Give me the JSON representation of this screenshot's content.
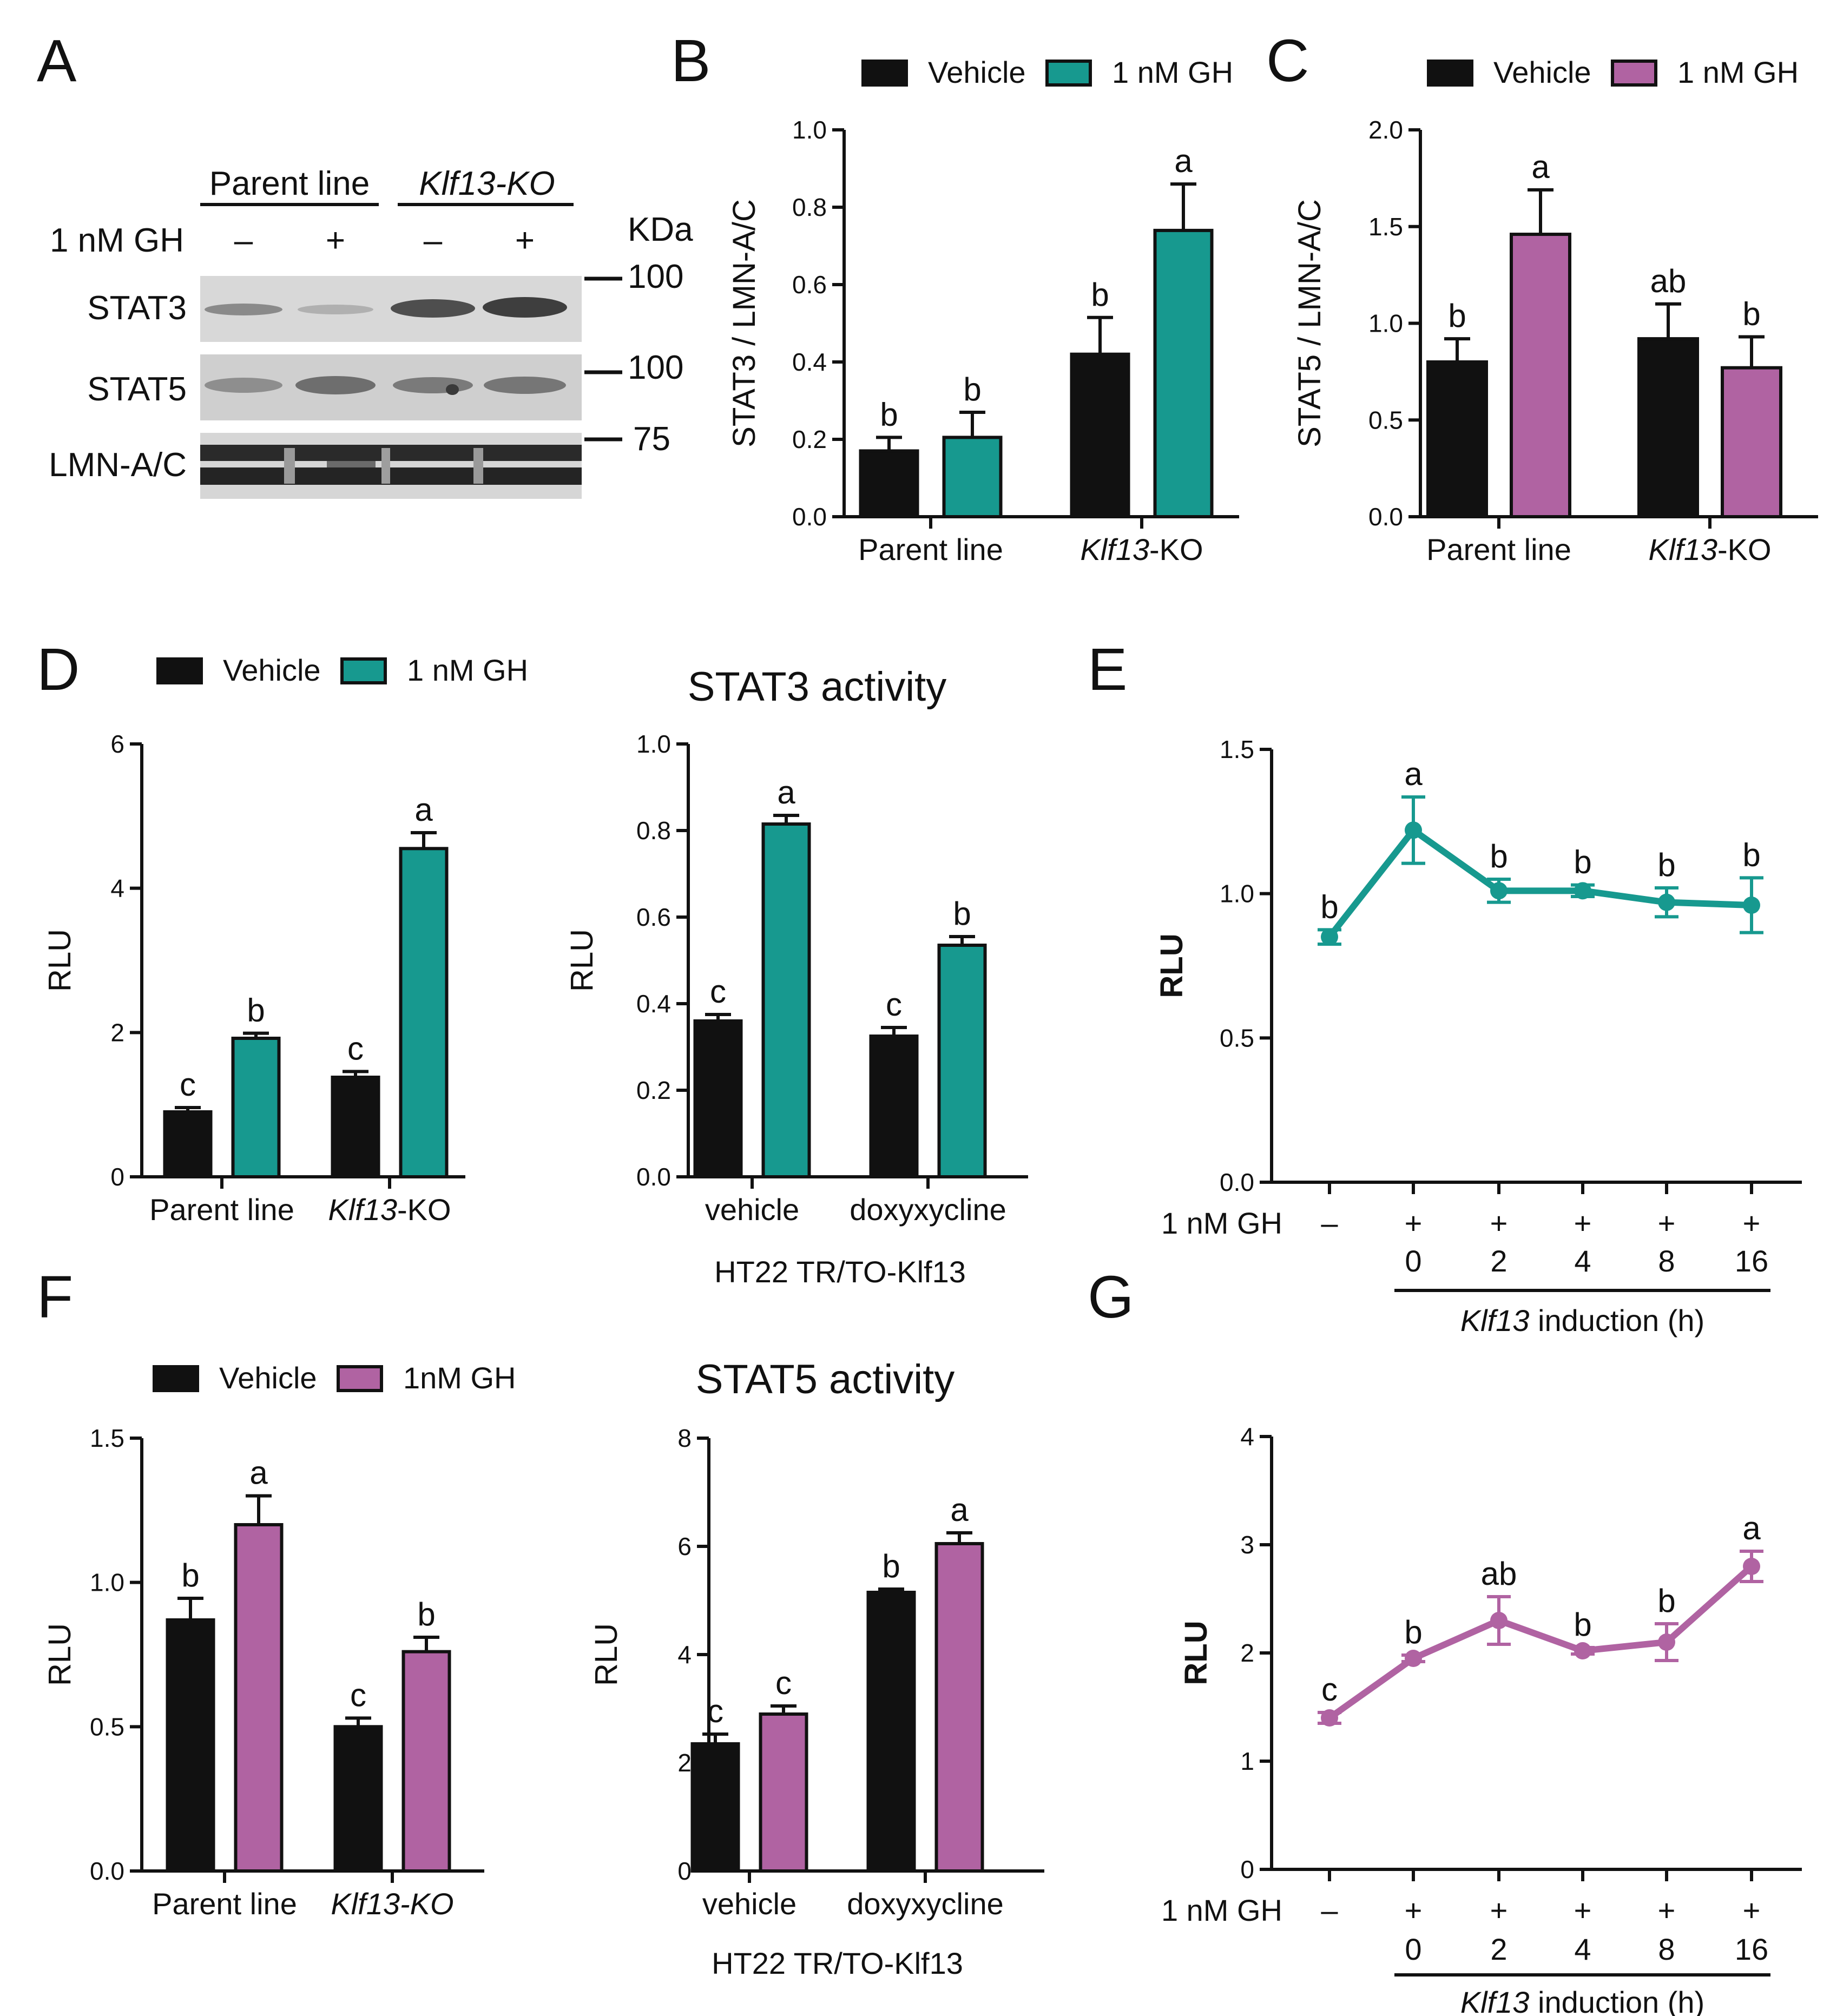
{
  "colors": {
    "black": "#111111",
    "teal": "#17998F",
    "purple": "#B063A2",
    "blot_bg": "#d3d3d3"
  },
  "panels": {
    "A": "A",
    "B": "B",
    "C": "C",
    "D": "D",
    "E": "E",
    "F": "F",
    "G": "G"
  },
  "blot": {
    "groups": [
      "Parent line",
      "Klf13-KO"
    ],
    "treatment_label": "1 nM GH",
    "treatment_signs": [
      "–",
      "+",
      "–",
      "+"
    ],
    "kda_label": "KDa",
    "rows": [
      "STAT3",
      "STAT5",
      "LMN-A/C"
    ],
    "markers": [
      "100",
      "100",
      "75"
    ]
  },
  "chart_data": [
    {
      "id": "B",
      "type": "bar",
      "categories": [
        "Parent line",
        "Klf13-KO"
      ],
      "series": [
        {
          "name": "Vehicle",
          "color": "#111111",
          "values": [
            0.17,
            0.42
          ],
          "errors": [
            0.035,
            0.095
          ],
          "sig": [
            "b",
            "b"
          ]
        },
        {
          "name": "1 nM GH",
          "color": "#17998F",
          "values": [
            0.205,
            0.74
          ],
          "errors": [
            0.065,
            0.12
          ],
          "sig": [
            "b",
            "a"
          ]
        }
      ],
      "ylabel": "STAT3 / LMN-A/C",
      "ylim": [
        0,
        1.0
      ],
      "yticks": [
        "0.0",
        "0.2",
        "0.4",
        "0.6",
        "0.8",
        "1.0"
      ]
    },
    {
      "id": "C",
      "type": "bar",
      "categories": [
        "Parent line",
        "Klf13-KO"
      ],
      "series": [
        {
          "name": "Vehicle",
          "color": "#111111",
          "values": [
            0.8,
            0.92
          ],
          "errors": [
            0.12,
            0.18
          ],
          "sig": [
            "b",
            "ab"
          ]
        },
        {
          "name": "1 nM GH",
          "color": "#B063A2",
          "values": [
            1.46,
            0.77
          ],
          "errors": [
            0.23,
            0.16
          ],
          "sig": [
            "a",
            "b"
          ]
        }
      ],
      "ylabel": "STAT5 / LMN-A/C",
      "ylim": [
        0,
        2.0
      ],
      "yticks": [
        "0.0",
        "0.5",
        "1.0",
        "1.5",
        "2.0"
      ]
    },
    {
      "id": "D-left",
      "type": "bar",
      "categories": [
        "Parent line",
        "Klf13-KO"
      ],
      "series": [
        {
          "name": "Vehicle",
          "color": "#111111",
          "values": [
            0.9,
            1.38
          ],
          "errors": [
            0.06,
            0.08
          ],
          "sig": [
            "c",
            "c"
          ]
        },
        {
          "name": "1 nM GH",
          "color": "#17998F",
          "values": [
            1.92,
            4.55
          ],
          "errors": [
            0.07,
            0.22
          ],
          "sig": [
            "b",
            "a"
          ]
        }
      ],
      "ylabel": "RLU",
      "ylim": [
        0,
        6
      ],
      "yticks": [
        "0",
        "2",
        "4",
        "6"
      ]
    },
    {
      "id": "D-right",
      "type": "bar",
      "title": "STAT3 activity",
      "categories": [
        "vehicle",
        "doxyxycline"
      ],
      "xlabel": "HT22 TR/TO-Klf13",
      "series": [
        {
          "name": "Vehicle",
          "color": "#111111",
          "values": [
            0.36,
            0.325
          ],
          "errors": [
            0.015,
            0.02
          ],
          "sig": [
            "c",
            "c"
          ]
        },
        {
          "name": "1 nM GH",
          "color": "#17998F",
          "values": [
            0.815,
            0.535
          ],
          "errors": [
            0.02,
            0.02
          ],
          "sig": [
            "a",
            "b"
          ]
        }
      ],
      "ylabel": "RLU",
      "ylim": [
        0,
        1.0
      ],
      "yticks": [
        "0.0",
        "0.2",
        "0.4",
        "0.6",
        "0.8",
        "1.0"
      ]
    },
    {
      "id": "E",
      "type": "line",
      "x": [
        "–",
        "0",
        "2",
        "4",
        "8",
        "16"
      ],
      "gh": [
        "–",
        "+",
        "+",
        "+",
        "+",
        "+"
      ],
      "values": [
        0.85,
        1.22,
        1.01,
        1.01,
        0.97,
        0.96
      ],
      "errors": [
        0.025,
        0.115,
        0.04,
        0.02,
        0.05,
        0.095
      ],
      "sig": [
        "b",
        "a",
        "b",
        "b",
        "b",
        "b"
      ],
      "color": "#17998F",
      "ylabel": "RLU",
      "ylim": [
        0,
        1.5
      ],
      "yticks": [
        "0.0",
        "0.5",
        "1.0",
        "1.5"
      ],
      "row_label": "1 nM GH",
      "xlabel": "Klf13 induction (h)"
    },
    {
      "id": "F-left",
      "type": "bar",
      "categories": [
        "Parent line",
        "Klf13-KO"
      ],
      "series": [
        {
          "name": "Vehicle",
          "color": "#111111",
          "values": [
            0.87,
            0.5
          ],
          "errors": [
            0.075,
            0.03
          ],
          "sig": [
            "b",
            "c"
          ]
        },
        {
          "name": "1nM GH",
          "color": "#B063A2",
          "values": [
            1.2,
            0.76
          ],
          "errors": [
            0.1,
            0.05
          ],
          "sig": [
            "a",
            "b"
          ]
        }
      ],
      "ylabel": "RLU",
      "ylim": [
        0,
        1.5
      ],
      "yticks": [
        "0.0",
        "0.5",
        "1.0",
        "1.5"
      ]
    },
    {
      "id": "F-right",
      "type": "bar",
      "title": "STAT5 activity",
      "categories": [
        "vehicle",
        "doxyxycline"
      ],
      "xlabel": "HT22 TR/TO-Klf13",
      "series": [
        {
          "name": "Vehicle",
          "color": "#111111",
          "values": [
            2.35,
            5.15
          ],
          "errors": [
            0.18,
            0.06
          ],
          "sig": [
            "c",
            "b"
          ]
        },
        {
          "name": "1nM GH",
          "color": "#B063A2",
          "values": [
            2.9,
            6.05
          ],
          "errors": [
            0.15,
            0.2
          ],
          "sig": [
            "c",
            "a"
          ]
        }
      ],
      "ylabel": "RLU",
      "ylim": [
        0,
        8
      ],
      "yticks": [
        "0",
        "2",
        "4",
        "6",
        "8"
      ]
    },
    {
      "id": "G",
      "type": "line",
      "x": [
        "–",
        "0",
        "2",
        "4",
        "8",
        "16"
      ],
      "gh": [
        "–",
        "+",
        "+",
        "+",
        "+",
        "+"
      ],
      "values": [
        1.4,
        1.95,
        2.3,
        2.02,
        2.1,
        2.8
      ],
      "errors": [
        0.05,
        0.03,
        0.22,
        0.03,
        0.17,
        0.14
      ],
      "sig": [
        "c",
        "b",
        "ab",
        "b",
        "b",
        "a"
      ],
      "color": "#B063A2",
      "ylabel": "RLU",
      "ylim": [
        0,
        4
      ],
      "yticks": [
        "0",
        "1",
        "2",
        "3",
        "4"
      ],
      "row_label": "1 nM GH",
      "xlabel": "Klf13 induction (h)"
    }
  ]
}
